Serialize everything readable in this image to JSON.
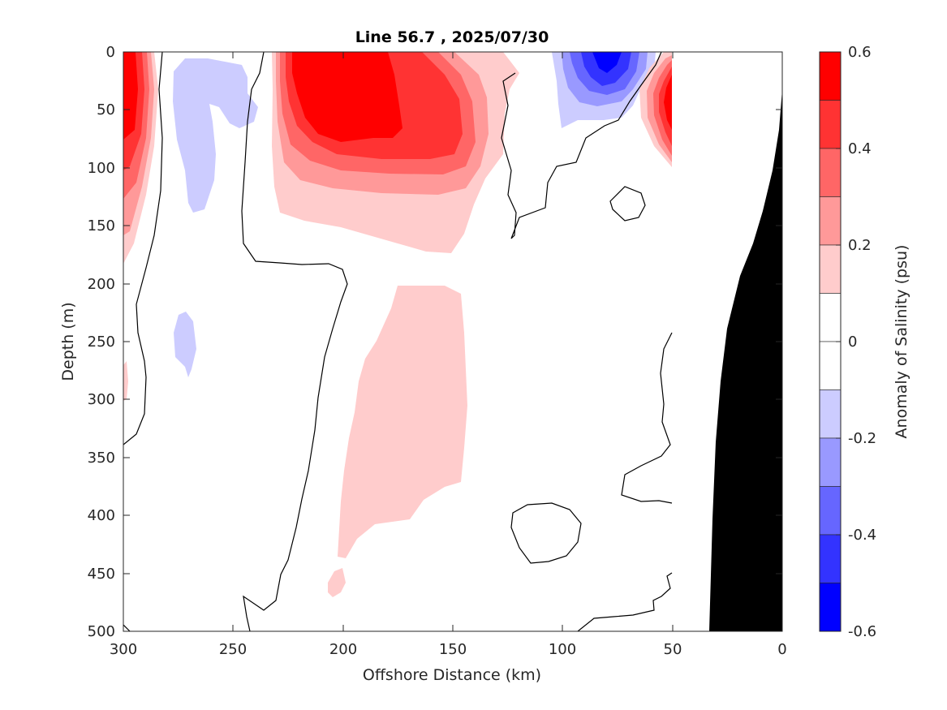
{
  "chart_data": {
    "type": "contour",
    "title": "Line 56.7 , 2025/07/30",
    "xlabel": "Offshore Distance (km)",
    "ylabel": "Depth (m)",
    "xlim": [
      300,
      0
    ],
    "ylim": [
      500,
      0
    ],
    "x_reversed": true,
    "y_reversed": true,
    "x_ticks": [
      300,
      250,
      200,
      150,
      100,
      50,
      0
    ],
    "y_ticks": [
      0,
      50,
      100,
      150,
      200,
      250,
      300,
      350,
      400,
      450,
      500
    ],
    "colorbar": {
      "label": "Anomaly of Salinity (psu)",
      "range": [
        -0.6,
        0.6
      ],
      "tick_labels": [
        "0.6",
        "0.4",
        "0.2",
        "0",
        "-0.2",
        "-0.4",
        "-0.6"
      ],
      "levels": [
        {
          "min": 0.5,
          "max": 0.6,
          "color": "#ff0000"
        },
        {
          "min": 0.4,
          "max": 0.5,
          "color": "#ff3333"
        },
        {
          "min": 0.3,
          "max": 0.4,
          "color": "#ff6666"
        },
        {
          "min": 0.2,
          "max": 0.3,
          "color": "#ff9999"
        },
        {
          "min": 0.1,
          "max": 0.2,
          "color": "#ffcccc"
        },
        {
          "min": 0.0,
          "max": 0.1,
          "color": "#ffffff"
        },
        {
          "min": -0.1,
          "max": 0.0,
          "color": "#ffffff"
        },
        {
          "min": -0.2,
          "max": -0.1,
          "color": "#ccccff"
        },
        {
          "min": -0.3,
          "max": -0.2,
          "color": "#9999ff"
        },
        {
          "min": -0.4,
          "max": -0.3,
          "color": "#6666ff"
        },
        {
          "min": -0.5,
          "max": -0.4,
          "color": "#3333ff"
        },
        {
          "min": -0.6,
          "max": -0.5,
          "color": "#0000ff"
        }
      ]
    },
    "features": [
      {
        "name": "nearshore-positive-anomaly",
        "x_km": [
          285,
          300
        ],
        "depth_m": [
          0,
          180
        ],
        "peak_psu": 0.6
      },
      {
        "name": "offshore-core-positive-anomaly",
        "x_km": [
          145,
          235
        ],
        "depth_m": [
          0,
          170
        ],
        "peak_psu": 0.6
      },
      {
        "name": "mid-depth-positive-anomaly",
        "x_km": [
          140,
          200
        ],
        "depth_m": [
          200,
          440
        ],
        "peak_psu": 0.2
      },
      {
        "name": "surface-negative-anomaly",
        "x_km": [
          50,
          100
        ],
        "depth_m": [
          0,
          60
        ],
        "peak_psu": -0.5
      },
      {
        "name": "coastal-positive-anomaly",
        "x_km": [
          50,
          60
        ],
        "depth_m": [
          0,
          100
        ],
        "peak_psu": 0.5
      },
      {
        "name": "shallow-negative-anomaly",
        "x_km": [
          240,
          275
        ],
        "depth_m": [
          5,
          135
        ],
        "peak_psu": -0.2
      },
      {
        "name": "deep-negative-anomaly",
        "x_km": [
          260,
          270
        ],
        "depth_m": [
          225,
          280
        ],
        "peak_psu": -0.2
      }
    ],
    "bathymetry": {
      "shelf_x_km": [
        0,
        33
      ],
      "color": "#000000"
    }
  }
}
